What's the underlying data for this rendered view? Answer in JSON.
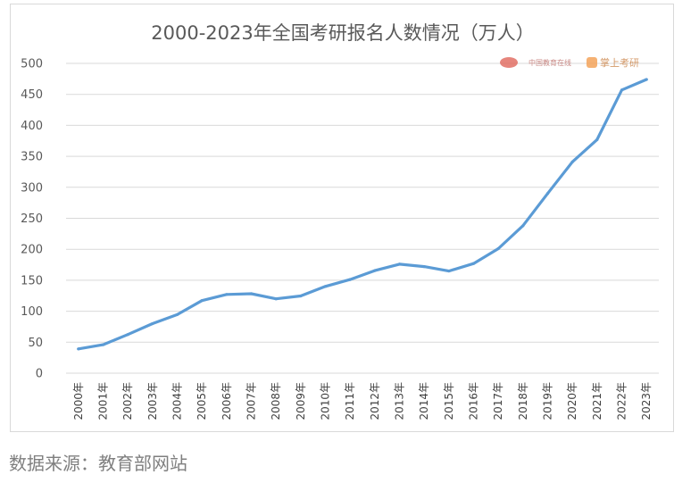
{
  "chart_data": {
    "type": "line",
    "title": "2000-2023年全国考研报名人数情况（万人）",
    "categories": [
      "2000年",
      "2001年",
      "2002年",
      "2003年",
      "2004年",
      "2005年",
      "2006年",
      "2007年",
      "2008年",
      "2009年",
      "2010年",
      "2011年",
      "2012年",
      "2013年",
      "2014年",
      "2015年",
      "2016年",
      "2017年",
      "2018年",
      "2019年",
      "2020年",
      "2021年",
      "2022年",
      "2023年"
    ],
    "series": [
      {
        "values": [
          39.2,
          46,
          62.4,
          79.9,
          94.5,
          117.2,
          127.1,
          128.2,
          120,
          124.6,
          140,
          151.1,
          165.6,
          176,
          172,
          164.9,
          177,
          201,
          238,
          290,
          341,
          377,
          457,
          474
        ]
      }
    ],
    "yticks": [
      "0",
      "50",
      "100",
      "150",
      "200",
      "250",
      "300",
      "350",
      "400",
      "450",
      "500"
    ],
    "ylim": [
      0,
      500
    ],
    "grid": true,
    "color": "#5b9bd5"
  },
  "watermarks": {
    "left_text": "中国教育在线",
    "right_text": "掌上考研"
  },
  "source": "数据来源：教育部网站"
}
